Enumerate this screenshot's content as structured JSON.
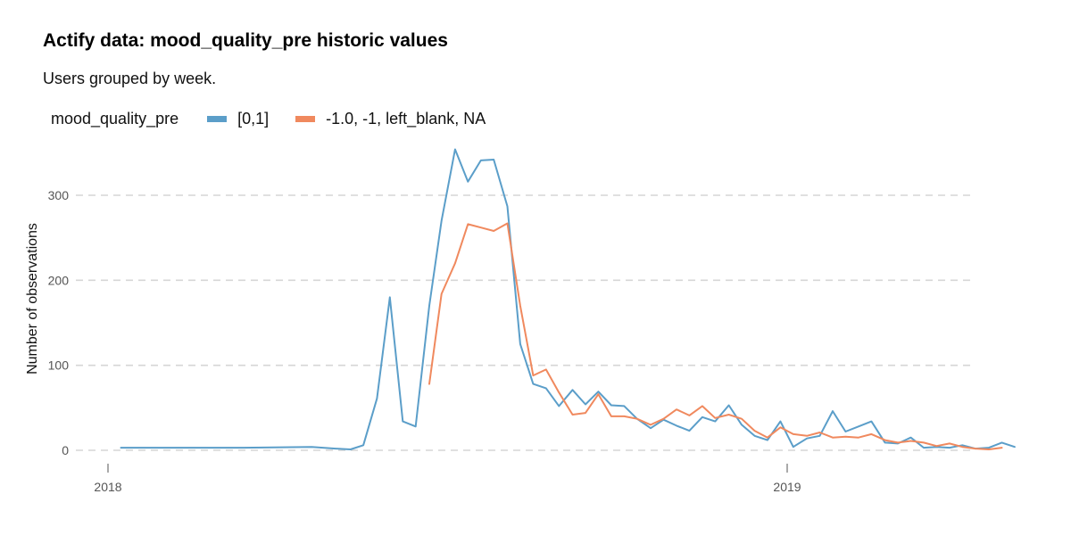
{
  "chart_data": {
    "type": "line",
    "title": "Actify data: mood_quality_pre historic values",
    "subtitle": "Users grouped by week.",
    "xlabel": "",
    "ylabel": "Number of observations",
    "legend_title": "mood_quality_pre",
    "legend_position": "top-left",
    "grid": "horizontal-dashed",
    "x_ticks": [
      {
        "value": 2018.0,
        "label": "2018"
      },
      {
        "value": 2019.0,
        "label": "2019"
      }
    ],
    "y_ticks": [
      0,
      100,
      200,
      300
    ],
    "xlim": [
      1.9985,
      2019.27
    ],
    "ylim": [
      -20,
      370
    ],
    "series": [
      {
        "name": "[0,1]",
        "color": "#5b9ec9",
        "points": [
          [
            2018.019,
            3
          ],
          [
            2018.1,
            3
          ],
          [
            2018.2,
            3
          ],
          [
            2018.3,
            4
          ],
          [
            2018.335,
            2
          ],
          [
            2018.357,
            1
          ],
          [
            2018.376,
            6
          ],
          [
            2018.396,
            61
          ],
          [
            2018.415,
            180
          ],
          [
            2018.434,
            34
          ],
          [
            2018.453,
            28
          ],
          [
            2018.473,
            170
          ],
          [
            2018.491,
            270
          ],
          [
            2018.511,
            354
          ],
          [
            2018.53,
            316
          ],
          [
            2018.549,
            341
          ],
          [
            2018.568,
            342
          ],
          [
            2018.588,
            287
          ],
          [
            2018.607,
            125
          ],
          [
            2018.626,
            78
          ],
          [
            2018.645,
            73
          ],
          [
            2018.664,
            52
          ],
          [
            2018.684,
            71
          ],
          [
            2018.703,
            54
          ],
          [
            2018.722,
            69
          ],
          [
            2018.741,
            53
          ],
          [
            2018.76,
            52
          ],
          [
            2018.779,
            37
          ],
          [
            2018.799,
            26
          ],
          [
            2018.818,
            36
          ],
          [
            2018.837,
            29
          ],
          [
            2018.856,
            23
          ],
          [
            2018.875,
            39
          ],
          [
            2018.894,
            34
          ],
          [
            2018.914,
            53
          ],
          [
            2018.933,
            30
          ],
          [
            2018.952,
            17
          ],
          [
            2018.971,
            12
          ],
          [
            2018.99,
            34
          ],
          [
            2019.009,
            4
          ],
          [
            2019.029,
            14
          ],
          [
            2019.048,
            17
          ],
          [
            2019.067,
            46
          ],
          [
            2019.086,
            22
          ],
          [
            2019.105,
            28
          ],
          [
            2019.124,
            34
          ],
          [
            2019.144,
            9
          ],
          [
            2019.163,
            8
          ],
          [
            2019.182,
            15
          ],
          [
            2019.201,
            3
          ],
          [
            2019.22,
            4
          ],
          [
            2019.239,
            3
          ],
          [
            2019.258,
            6
          ],
          [
            2019.277,
            2
          ],
          [
            2019.297,
            3
          ],
          [
            2019.316,
            9
          ],
          [
            2019.335,
            4
          ]
        ]
      },
      {
        "name": "-1.0, -1, left_blank, NA",
        "color": "#f0895e",
        "points": [
          [
            2018.473,
            78
          ],
          [
            2018.491,
            184
          ],
          [
            2018.511,
            220
          ],
          [
            2018.53,
            266
          ],
          [
            2018.549,
            262
          ],
          [
            2018.568,
            258
          ],
          [
            2018.588,
            267
          ],
          [
            2018.607,
            170
          ],
          [
            2018.626,
            88
          ],
          [
            2018.645,
            95
          ],
          [
            2018.664,
            68
          ],
          [
            2018.684,
            42
          ],
          [
            2018.703,
            44
          ],
          [
            2018.722,
            66
          ],
          [
            2018.741,
            40
          ],
          [
            2018.76,
            40
          ],
          [
            2018.779,
            37
          ],
          [
            2018.799,
            30
          ],
          [
            2018.818,
            37
          ],
          [
            2018.837,
            48
          ],
          [
            2018.856,
            41
          ],
          [
            2018.875,
            52
          ],
          [
            2018.894,
            38
          ],
          [
            2018.914,
            42
          ],
          [
            2018.933,
            37
          ],
          [
            2018.952,
            23
          ],
          [
            2018.971,
            15
          ],
          [
            2018.99,
            27
          ],
          [
            2019.009,
            19
          ],
          [
            2019.029,
            17
          ],
          [
            2019.048,
            21
          ],
          [
            2019.067,
            15
          ],
          [
            2019.086,
            16
          ],
          [
            2019.105,
            15
          ],
          [
            2019.124,
            19
          ],
          [
            2019.144,
            12
          ],
          [
            2019.163,
            9
          ],
          [
            2019.182,
            11
          ],
          [
            2019.201,
            9
          ],
          [
            2019.22,
            5
          ],
          [
            2019.239,
            8
          ],
          [
            2019.258,
            4
          ],
          [
            2019.277,
            2
          ],
          [
            2019.297,
            1
          ],
          [
            2019.316,
            3
          ]
        ]
      }
    ]
  }
}
